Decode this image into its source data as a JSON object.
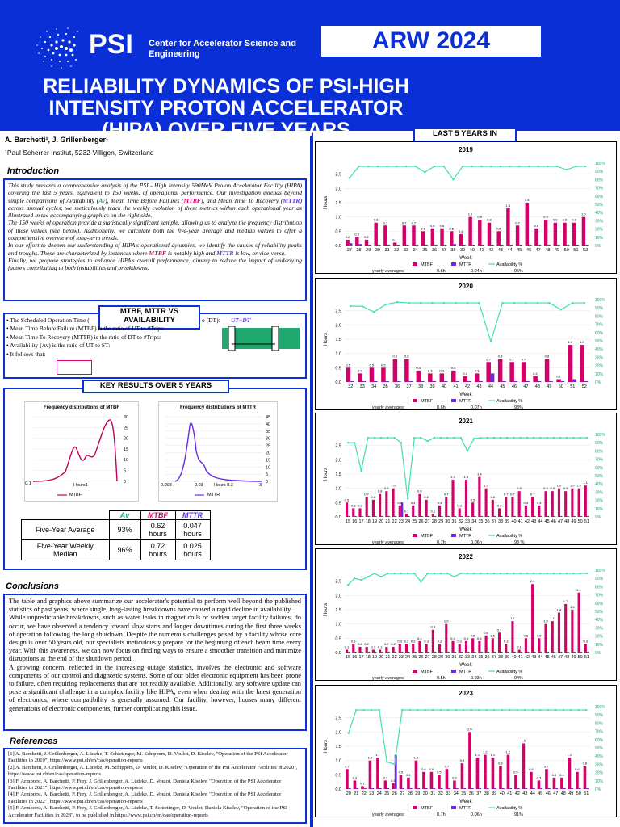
{
  "header": {
    "org": "PSI",
    "org_sub": "Center for Accelerator Science and Engineering",
    "conference": "ARW 2024",
    "title": "RELIABILITY DYNAMICS OF PSI-HIGH INTENSITY PROTON ACCELERATOR (HIPA) OVER FIVE YEARS",
    "authors": "A. Barchetti¹, J. Grillenberger¹",
    "affiliation": "¹Paul Scherrer Institut, 5232-Villigen, Switzerland"
  },
  "intro": {
    "heading": "Introduction",
    "p1a": "This study presents a comprehensive analysis of the PSI - High Intensity 590MeV Proton Accelerator Facility (HIPA) covering the last 5 years, equivalent to 150 weeks, of operational performance. Our investigation extends beyond simple comparisons of Availability (",
    "av": "Av",
    "p1b": "), Mean Time Before Failures (",
    "mtbf": "MTBF",
    "p1c": "), and Mean Time To Recovery (",
    "mttr": "MTTR",
    "p1d": ") across annual cycles; we meticulously track the weekly evolution of these metrics within each operational year as illustrated in the accompanying graphics on the right side.",
    "p2": "The 150 weeks of operation provide a statistically significant sample, allowing us to analyze the frequency distribution of these values (see below). Additionally, we calculate both the five-year average and median values to offer a comprehensive overview of long-term trends.",
    "p3a": "In our effort to deepen our understanding of HIPA's operational dynamics, we identify the causes of reliability peaks and troughs. These are characterized by instances where ",
    "p3b": " is notably high and ",
    "p3c": " is low, or vice-versa.",
    "p4": "Finally, we propose strategies to enhance HIPA's overall performance, aiming to reduce the impact of underlying factors contributing to both instabilities and breakdowns."
  },
  "defs": {
    "tag": "MTBF, MTTR VS AVAILABILITY",
    "items": [
      "The Scheduled Operation Time (",
      "Mean Time Before Failure (MTBF) is the ratio of UT to #Trips:",
      "Mean Time To Recovery (MTTR) is the ratio of DT to #Trips:",
      "Availability (Av) is the ratio of UT to ST:",
      "It follows that:"
    ],
    "right_fragment": "o (DT):",
    "formula": "UT+DT"
  },
  "key_results": {
    "tag": "KEY RESULTS OVER 5 YEARS",
    "hist1_title": "Frequency distributions of MTBF",
    "hist2_title": "Frequency distributions of MTTR",
    "hist1_legend": "MTBF",
    "hist2_legend": "MTTR",
    "hist1_x": [
      "0.1",
      "Hours1"
    ],
    "hist2_x": [
      "0.003",
      "0.03",
      "Hours 0.3",
      "3"
    ],
    "hist1_y": [
      "30",
      "25",
      "20",
      "15",
      "10",
      "5",
      "0"
    ],
    "hist2_y": [
      "45",
      "40",
      "35",
      "30",
      "25",
      "20",
      "15",
      "10",
      "5",
      "0"
    ],
    "table": {
      "headers": [
        "",
        "Av",
        "MTBF",
        "MTTR"
      ],
      "rows": [
        [
          "Five-Year Average",
          "93%",
          "0.62 hours",
          "0.047 hours"
        ],
        [
          "Five-Year Weekly Median",
          "96%",
          "0.72 hours",
          "0.025 hours"
        ]
      ]
    }
  },
  "conclusions": {
    "heading": "Conclusions",
    "p1": "The table and graphics above summarize our accelerator's potential to perform well beyond the published statistics of past years, where single, long-lasting breakdowns have caused a rapid decline in availability.",
    "p2": "While unpredictable breakdowns, such as water leaks in magnet coils or sudden target facility failures, do occur, we have observed a tendency toward slow starts and longer downtimes during the first three weeks of operation following the long shutdown. Despite the numerous challenges posed by a facility whose core design is over 50 years old, our specialists meticulously prepare for the beginning of each beam time every year. With this awareness, we can now focus on finding ways to ensure a smoother transition and minimize disruptions at the end of the shutdown period.",
    "p3": "A growing concern, reflected in the increasing outage statistics, involves the electronic and software components of our control and diagnostic systems. Some of our older electronic equipment has been prone to failure, often requiring replacements that are not readily available. Additionally, any software update can pose a significant challenge in a complex facility like HIPA, even when dealing with the latest generation of electronics, where compatibility is generally assumed. Our facility, however, houses many different generations of electronic components, further complicating this issue."
  },
  "references": {
    "heading": "References",
    "items": [
      "[1] A. Barchetti, J. Grillenberger, A. Lüdeke, T. Schietinger, M. Schippers, D. Voulot, D. Kiselev, \"Operation of the PSI Accelerator Facilities in 2019\", https://www.psi.ch/en/cas/operation-reports",
      "[2] A. Barchetti, J. Grillenberger, A. Lüdeke, M. Schippers, D. Voulot, D. Kiselev, \"Operation of the PSI Accelerator Facilities in 2020\", https://www.psi.ch/en/cas/operation-reports",
      "[3] F. Armborst, A. Barchetti, P. Frey, J. Grillenberger, A. Lüdeke, D. Voulot, Daniela Kiselev, \"Operation of the PSI Accelerator Facilities in 2021\", https://www.psi.ch/en/cas/operation-reports",
      "[4] F. Armborst, A. Barchetti, P. Frey, J. Grillenberger, A. Lüdeke, D. Voulot, Daniela Kiselev, \"Operation of the PSI Accelerator Facilities in 2022\", https://www.psi.ch/en/cas/operation-reports",
      "[5] F. Armborst, A. Barchetti, P. Frey, J. Grillenberger, A. Lüdeke, T. Schietinger, D. Voulot, Daniela Kiselev, \"Operation of the PSI Accelerator Facilities in 2023\", to be published in https://www.psi.ch/en/cas/operation-reports"
    ]
  },
  "right_panel": {
    "tag": "LAST 5 YEARS IN",
    "ylabel": "Hours",
    "xlabel": "Week",
    "legend": [
      "MTBF",
      "MTTR",
      "Availability %"
    ],
    "avg_label": "yearly averages:",
    "left_ticks": [
      "0.0",
      "0.5",
      "1.0",
      "1.5",
      "2.0",
      "2.5"
    ],
    "right_ticks": [
      "0%",
      "10%",
      "20%",
      "30%",
      "40%",
      "50%",
      "60%",
      "70%",
      "80%",
      "90%",
      "100%"
    ]
  },
  "chart_data": [
    {
      "type": "bar",
      "title": "2019",
      "x": [
        "27",
        "28",
        "29",
        "30",
        "31",
        "32",
        "33",
        "34",
        "35",
        "36",
        "37",
        "38",
        "39",
        "40",
        "41",
        "42",
        "43",
        "44",
        "45",
        "46",
        "47",
        "48",
        "49",
        "50",
        "51",
        "52"
      ],
      "series": [
        {
          "name": "MTBF",
          "values": [
            0.2,
            0.3,
            0.2,
            0.8,
            0.7,
            0.1,
            0.7,
            0.7,
            0.5,
            0.6,
            0.6,
            0.5,
            0.4,
            1.0,
            0.9,
            0.8,
            0.5,
            1.3,
            0.7,
            1.5,
            0.6,
            0.9,
            0.8,
            0.8,
            0.8,
            1.0
          ]
        },
        {
          "name": "MTTR",
          "values": [
            0.08,
            0.05,
            0.03,
            0.03,
            0.03,
            0.03,
            0.03,
            0.03,
            0.03,
            0.03,
            0.03,
            0.05,
            0.03,
            0.03,
            0.03,
            0.03,
            0.03,
            0.03,
            0.03,
            0.03,
            0.03,
            0.03,
            0.03,
            0.03,
            0.03,
            0.03
          ]
        },
        {
          "name": "Availability %",
          "values": [
            82,
            96,
            96,
            96,
            96,
            96,
            96,
            96,
            89,
            96,
            96,
            80,
            96,
            96,
            96,
            96,
            96,
            96,
            96,
            96,
            96,
            96,
            96,
            92,
            96,
            96
          ]
        }
      ],
      "averages": {
        "MTBF": "0.6h",
        "MTTR": "0.04h",
        "Availability": "95%"
      },
      "ylim": [
        0,
        3
      ]
    },
    {
      "type": "bar",
      "title": "2020",
      "x": [
        "32",
        "33",
        "34",
        "35",
        "36",
        "37",
        "38",
        "39",
        "40",
        "41",
        "42",
        "43",
        "44",
        "45",
        "46",
        "47",
        "48",
        "49",
        "50",
        "51",
        "52"
      ],
      "series": [
        {
          "name": "MTBF",
          "values": [
            0.5,
            0.3,
            0.5,
            0.5,
            0.8,
            0.8,
            0.4,
            0.3,
            0.3,
            0.4,
            0.2,
            0.3,
            0.7,
            0.8,
            0.7,
            0.7,
            0.2,
            0.8,
            0.1,
            1.3,
            1.3
          ]
        },
        {
          "name": "MTTR",
          "values": [
            0.03,
            0.03,
            0.03,
            0.03,
            0.03,
            0.03,
            0.03,
            0.03,
            0.03,
            0.03,
            0.03,
            0.03,
            0.3,
            0.03,
            0.03,
            0.03,
            0.03,
            0.03,
            0.03,
            0.1,
            0.03
          ]
        },
        {
          "name": "Availability %",
          "values": [
            92,
            92,
            85,
            94,
            97,
            96,
            96,
            96,
            96,
            96,
            96,
            96,
            49,
            96,
            96,
            96,
            96,
            96,
            88,
            96,
            96
          ]
        }
      ],
      "averages": {
        "MTBF": "0.6h",
        "MTTR": "0.07h",
        "Availability": "93%"
      },
      "ylim": [
        0,
        3
      ]
    },
    {
      "type": "bar",
      "title": "2021",
      "x": [
        "15",
        "16",
        "17",
        "18",
        "19",
        "20",
        "21",
        "22",
        "23",
        "24",
        "25",
        "26",
        "27",
        "28",
        "29",
        "30",
        "31",
        "32",
        "33",
        "34",
        "35",
        "36",
        "37",
        "38",
        "39",
        "40",
        "41",
        "42",
        "43",
        "44",
        "45",
        "46",
        "47",
        "48",
        "49",
        "50",
        "51"
      ],
      "series": [
        {
          "name": "MTBF",
          "values": [
            0.5,
            0.3,
            0.3,
            0.7,
            0.6,
            0.8,
            0.9,
            1.0,
            0.4,
            0.1,
            0.4,
            0.8,
            0.6,
            0.1,
            0.4,
            0.7,
            1.3,
            0.3,
            1.3,
            0.5,
            1.4,
            1.0,
            0.6,
            0.3,
            0.7,
            0.7,
            0.9,
            0.4,
            0.7,
            0.4,
            0.9,
            0.9,
            1.0,
            0.9,
            1.0,
            1.0,
            1.1
          ]
        },
        {
          "name": "MTTR",
          "values": [
            0.03,
            0.03,
            0.03,
            0.03,
            0.03,
            0.03,
            0.03,
            0.03,
            0.5,
            0.03,
            0.03,
            0.03,
            0.03,
            0.03,
            0.03,
            0.03,
            0.03,
            0.03,
            0.03,
            0.03,
            0.03,
            0.03,
            0.03,
            0.03,
            0.03,
            0.03,
            0.03,
            0.03,
            0.03,
            0.03,
            0.03,
            0.03,
            0.03,
            0.03,
            0.03,
            0.03,
            0.03
          ]
        },
        {
          "name": "Availability %",
          "values": [
            90,
            90,
            56,
            96,
            96,
            96,
            96,
            96,
            90,
            22,
            96,
            96,
            92,
            96,
            96,
            96,
            96,
            96,
            80,
            95,
            96,
            96,
            96,
            96,
            96,
            96,
            96,
            96,
            96,
            96,
            96,
            96,
            96,
            96,
            96,
            96,
            96
          ]
        }
      ],
      "averages": {
        "MTBF": "0.7h",
        "MTTR": "0.06h",
        "Availability": "93 %"
      },
      "ylim": [
        0,
        3
      ]
    },
    {
      "type": "bar",
      "title": "2022",
      "x": [
        "15",
        "16",
        "17",
        "18",
        "19",
        "20",
        "21",
        "22",
        "23",
        "24",
        "25",
        "26",
        "27",
        "28",
        "29",
        "30",
        "31",
        "32",
        "33",
        "34",
        "35",
        "36",
        "37",
        "38",
        "39",
        "40",
        "41",
        "42",
        "43",
        "44",
        "45",
        "46",
        "47",
        "48",
        "49",
        "50",
        "51"
      ],
      "series": [
        {
          "name": "MTBF",
          "values": [
            0.1,
            0.3,
            0.2,
            0.2,
            0.1,
            0.1,
            0.2,
            0.2,
            0.3,
            0.3,
            0.3,
            0.4,
            0.3,
            0.8,
            0.3,
            1.0,
            0.4,
            0.3,
            0.4,
            0.5,
            0.4,
            0.6,
            0.5,
            0.7,
            0.3,
            1.1,
            0.1,
            0.5,
            2.4,
            0.5,
            1.0,
            1.1,
            1.4,
            1.7,
            1.5,
            2.1,
            0.3
          ]
        },
        {
          "name": "MTTR",
          "values": [
            0.03,
            0.03,
            0.03,
            0.03,
            0.03,
            0.03,
            0.03,
            0.03,
            0.03,
            0.03,
            0.03,
            0.03,
            0.03,
            0.03,
            0.03,
            0.03,
            0.03,
            0.03,
            0.03,
            0.03,
            0.03,
            0.03,
            0.03,
            0.03,
            0.03,
            0.03,
            0.03,
            0.03,
            0.03,
            0.03,
            0.03,
            0.03,
            0.03,
            0.03,
            0.03,
            0.03,
            0.03
          ]
        },
        {
          "name": "Availability %",
          "values": [
            82,
            90,
            88,
            92,
            96,
            92,
            96,
            96,
            96,
            96,
            96,
            86,
            96,
            96,
            96,
            96,
            92,
            96,
            96,
            96,
            96,
            96,
            96,
            96,
            96,
            96,
            96,
            96,
            96,
            96,
            96,
            96,
            96,
            96,
            96,
            96,
            96
          ]
        }
      ],
      "averages": {
        "MTBF": "0.5h",
        "MTTR": "0.03h",
        "Availability": "94%"
      },
      "ylim": [
        0,
        3
      ]
    },
    {
      "type": "bar",
      "title": "2023",
      "x": [
        "20",
        "21",
        "22",
        "23",
        "24",
        "25",
        "26",
        "27",
        "28",
        "29",
        "30",
        "31",
        "32",
        "33",
        "34",
        "35",
        "36",
        "37",
        "38",
        "39",
        "40",
        "41",
        "42",
        "43",
        "44",
        "45",
        "46",
        "47",
        "48",
        "49",
        "50",
        "51"
      ],
      "series": [
        {
          "name": "MTBF",
          "values": [
            0.7,
            0.3,
            0.1,
            1.0,
            1.1,
            0.3,
            0.2,
            0.5,
            0.4,
            1.0,
            0.6,
            0.6,
            0.5,
            0.7,
            0.3,
            0.9,
            2.0,
            1.1,
            1.2,
            1.1,
            0.8,
            1.2,
            0.5,
            1.6,
            0.6,
            0.3,
            0.7,
            0.4,
            0.4,
            1.1,
            0.6,
            0.8
          ]
        },
        {
          "name": "MTTR",
          "values": [
            0.03,
            0.03,
            0.03,
            0.03,
            0.03,
            0.03,
            1.2,
            0.03,
            0.03,
            0.03,
            0.03,
            0.03,
            0.03,
            0.03,
            0.03,
            0.03,
            0.03,
            0.03,
            0.03,
            0.03,
            0.03,
            0.03,
            0.03,
            0.03,
            0.03,
            0.03,
            0.03,
            0.03,
            0.03,
            0.03,
            0.03,
            0.03
          ]
        },
        {
          "name": "Availability %",
          "values": [
            68,
            96,
            96,
            96,
            96,
            33,
            30,
            96,
            96,
            96,
            96,
            96,
            96,
            96,
            96,
            96,
            96,
            96,
            96,
            96,
            96,
            96,
            96,
            96,
            96,
            96,
            96,
            96,
            96,
            96,
            96,
            96
          ]
        }
      ],
      "averages": {
        "MTBF": "0.7h",
        "MTTR": "0.06h",
        "Availability": "91%"
      },
      "ylim": [
        0,
        3
      ]
    }
  ]
}
